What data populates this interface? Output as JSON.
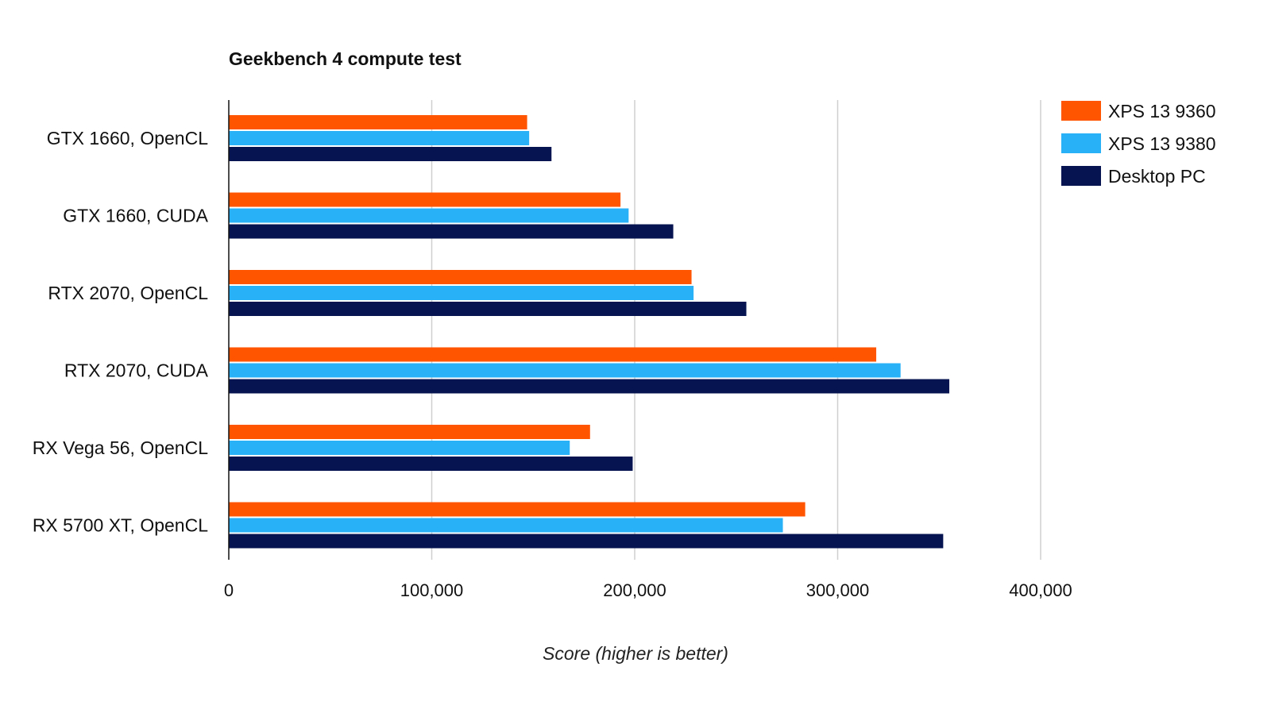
{
  "chart_data": {
    "type": "bar",
    "orientation": "horizontal",
    "title": "Geekbench 4 compute test",
    "xlabel": "Score (higher is better)",
    "ylabel": "",
    "categories": [
      "GTX 1660, OpenCL",
      "GTX 1660, CUDA",
      "RTX 2070, OpenCL",
      "RTX 2070, CUDA",
      "RX Vega 56, OpenCL",
      "RX 5700 XT, OpenCL"
    ],
    "series": [
      {
        "name": "XPS 13 9360",
        "color": "#ff5500",
        "values": [
          147000,
          193000,
          228000,
          319000,
          178000,
          284000
        ]
      },
      {
        "name": "XPS 13 9380",
        "color": "#29b1f7",
        "values": [
          148000,
          197000,
          229000,
          331000,
          168000,
          273000
        ]
      },
      {
        "name": "Desktop PC",
        "color": "#071452",
        "values": [
          159000,
          219000,
          255000,
          355000,
          199000,
          352000
        ]
      }
    ],
    "xlim": [
      0,
      400000
    ],
    "ticks": [
      0,
      100000,
      200000,
      300000,
      400000
    ],
    "tick_labels": [
      "0",
      "100,000",
      "200,000",
      "300,000",
      "400,000"
    ],
    "grid": true,
    "legend_position": "top-right"
  }
}
